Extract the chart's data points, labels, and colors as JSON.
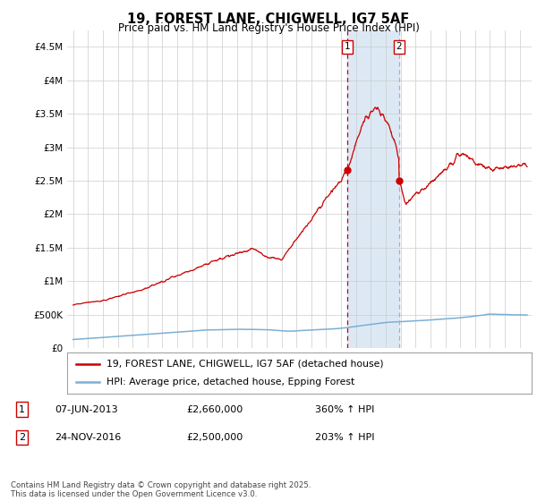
{
  "title": "19, FOREST LANE, CHIGWELL, IG7 5AF",
  "subtitle": "Price paid vs. HM Land Registry's House Price Index (HPI)",
  "legend_line1": "19, FOREST LANE, CHIGWELL, IG7 5AF (detached house)",
  "legend_line2": "HPI: Average price, detached house, Epping Forest",
  "annotation1_label": "1",
  "annotation1_date": "07-JUN-2013",
  "annotation1_price": "£2,660,000",
  "annotation1_hpi": "360% ↑ HPI",
  "annotation2_label": "2",
  "annotation2_date": "24-NOV-2016",
  "annotation2_price": "£2,500,000",
  "annotation2_hpi": "203% ↑ HPI",
  "footnote": "Contains HM Land Registry data © Crown copyright and database right 2025.\nThis data is licensed under the Open Government Licence v3.0.",
  "house_color": "#cc0000",
  "hpi_color": "#7bafd4",
  "background_color": "#ffffff",
  "grid_color": "#cccccc",
  "highlight_color": "#dce9f5",
  "vline_color": "#cc0000",
  "vline2_color": "#aaaacc",
  "ylim": [
    0,
    4750000
  ],
  "yticks": [
    0,
    500000,
    1000000,
    1500000,
    2000000,
    2500000,
    3000000,
    3500000,
    4000000,
    4500000
  ],
  "ytick_labels": [
    "£0",
    "£500K",
    "£1M",
    "£1.5M",
    "£2M",
    "£2.5M",
    "£3M",
    "£3.5M",
    "£4M",
    "£4.5M"
  ],
  "xstart": 1995,
  "xend": 2025,
  "sale1_year": 2013.44,
  "sale2_year": 2016.9,
  "sale1_price": 2660000,
  "sale2_price": 2500000
}
